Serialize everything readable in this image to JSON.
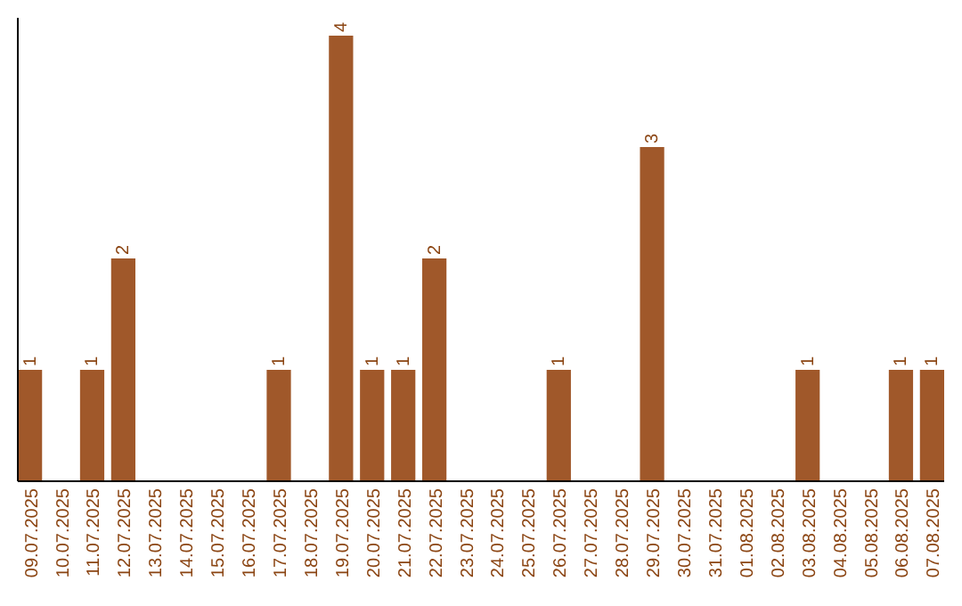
{
  "chart_data": {
    "type": "bar",
    "categories": [
      "09.07.2025",
      "10.07.2025",
      "11.07.2025",
      "12.07.2025",
      "13.07.2025",
      "14.07.2025",
      "15.07.2025",
      "16.07.2025",
      "17.07.2025",
      "18.07.2025",
      "19.07.2025",
      "20.07.2025",
      "21.07.2025",
      "22.07.2025",
      "23.07.2025",
      "24.07.2025",
      "25.07.2025",
      "26.07.2025",
      "27.07.2025",
      "28.07.2025",
      "29.07.2025",
      "30.07.2025",
      "31.07.2025",
      "01.08.2025",
      "02.08.2025",
      "03.08.2025",
      "04.08.2025",
      "05.08.2025",
      "06.08.2025",
      "07.08.2025"
    ],
    "values": [
      1,
      0,
      1,
      2,
      0,
      0,
      0,
      0,
      1,
      0,
      4,
      1,
      1,
      2,
      0,
      0,
      0,
      1,
      0,
      0,
      3,
      0,
      0,
      0,
      0,
      1,
      0,
      0,
      1,
      1
    ],
    "value_labels": [
      "1",
      null,
      "1",
      "2",
      null,
      null,
      null,
      null,
      "1",
      null,
      "4",
      "1",
      "1",
      "2",
      null,
      null,
      null,
      "1",
      null,
      null,
      "3",
      null,
      null,
      null,
      null,
      "1",
      null,
      null,
      "1",
      "1"
    ],
    "color": "#a0582a",
    "tick_labels": "x"
  }
}
